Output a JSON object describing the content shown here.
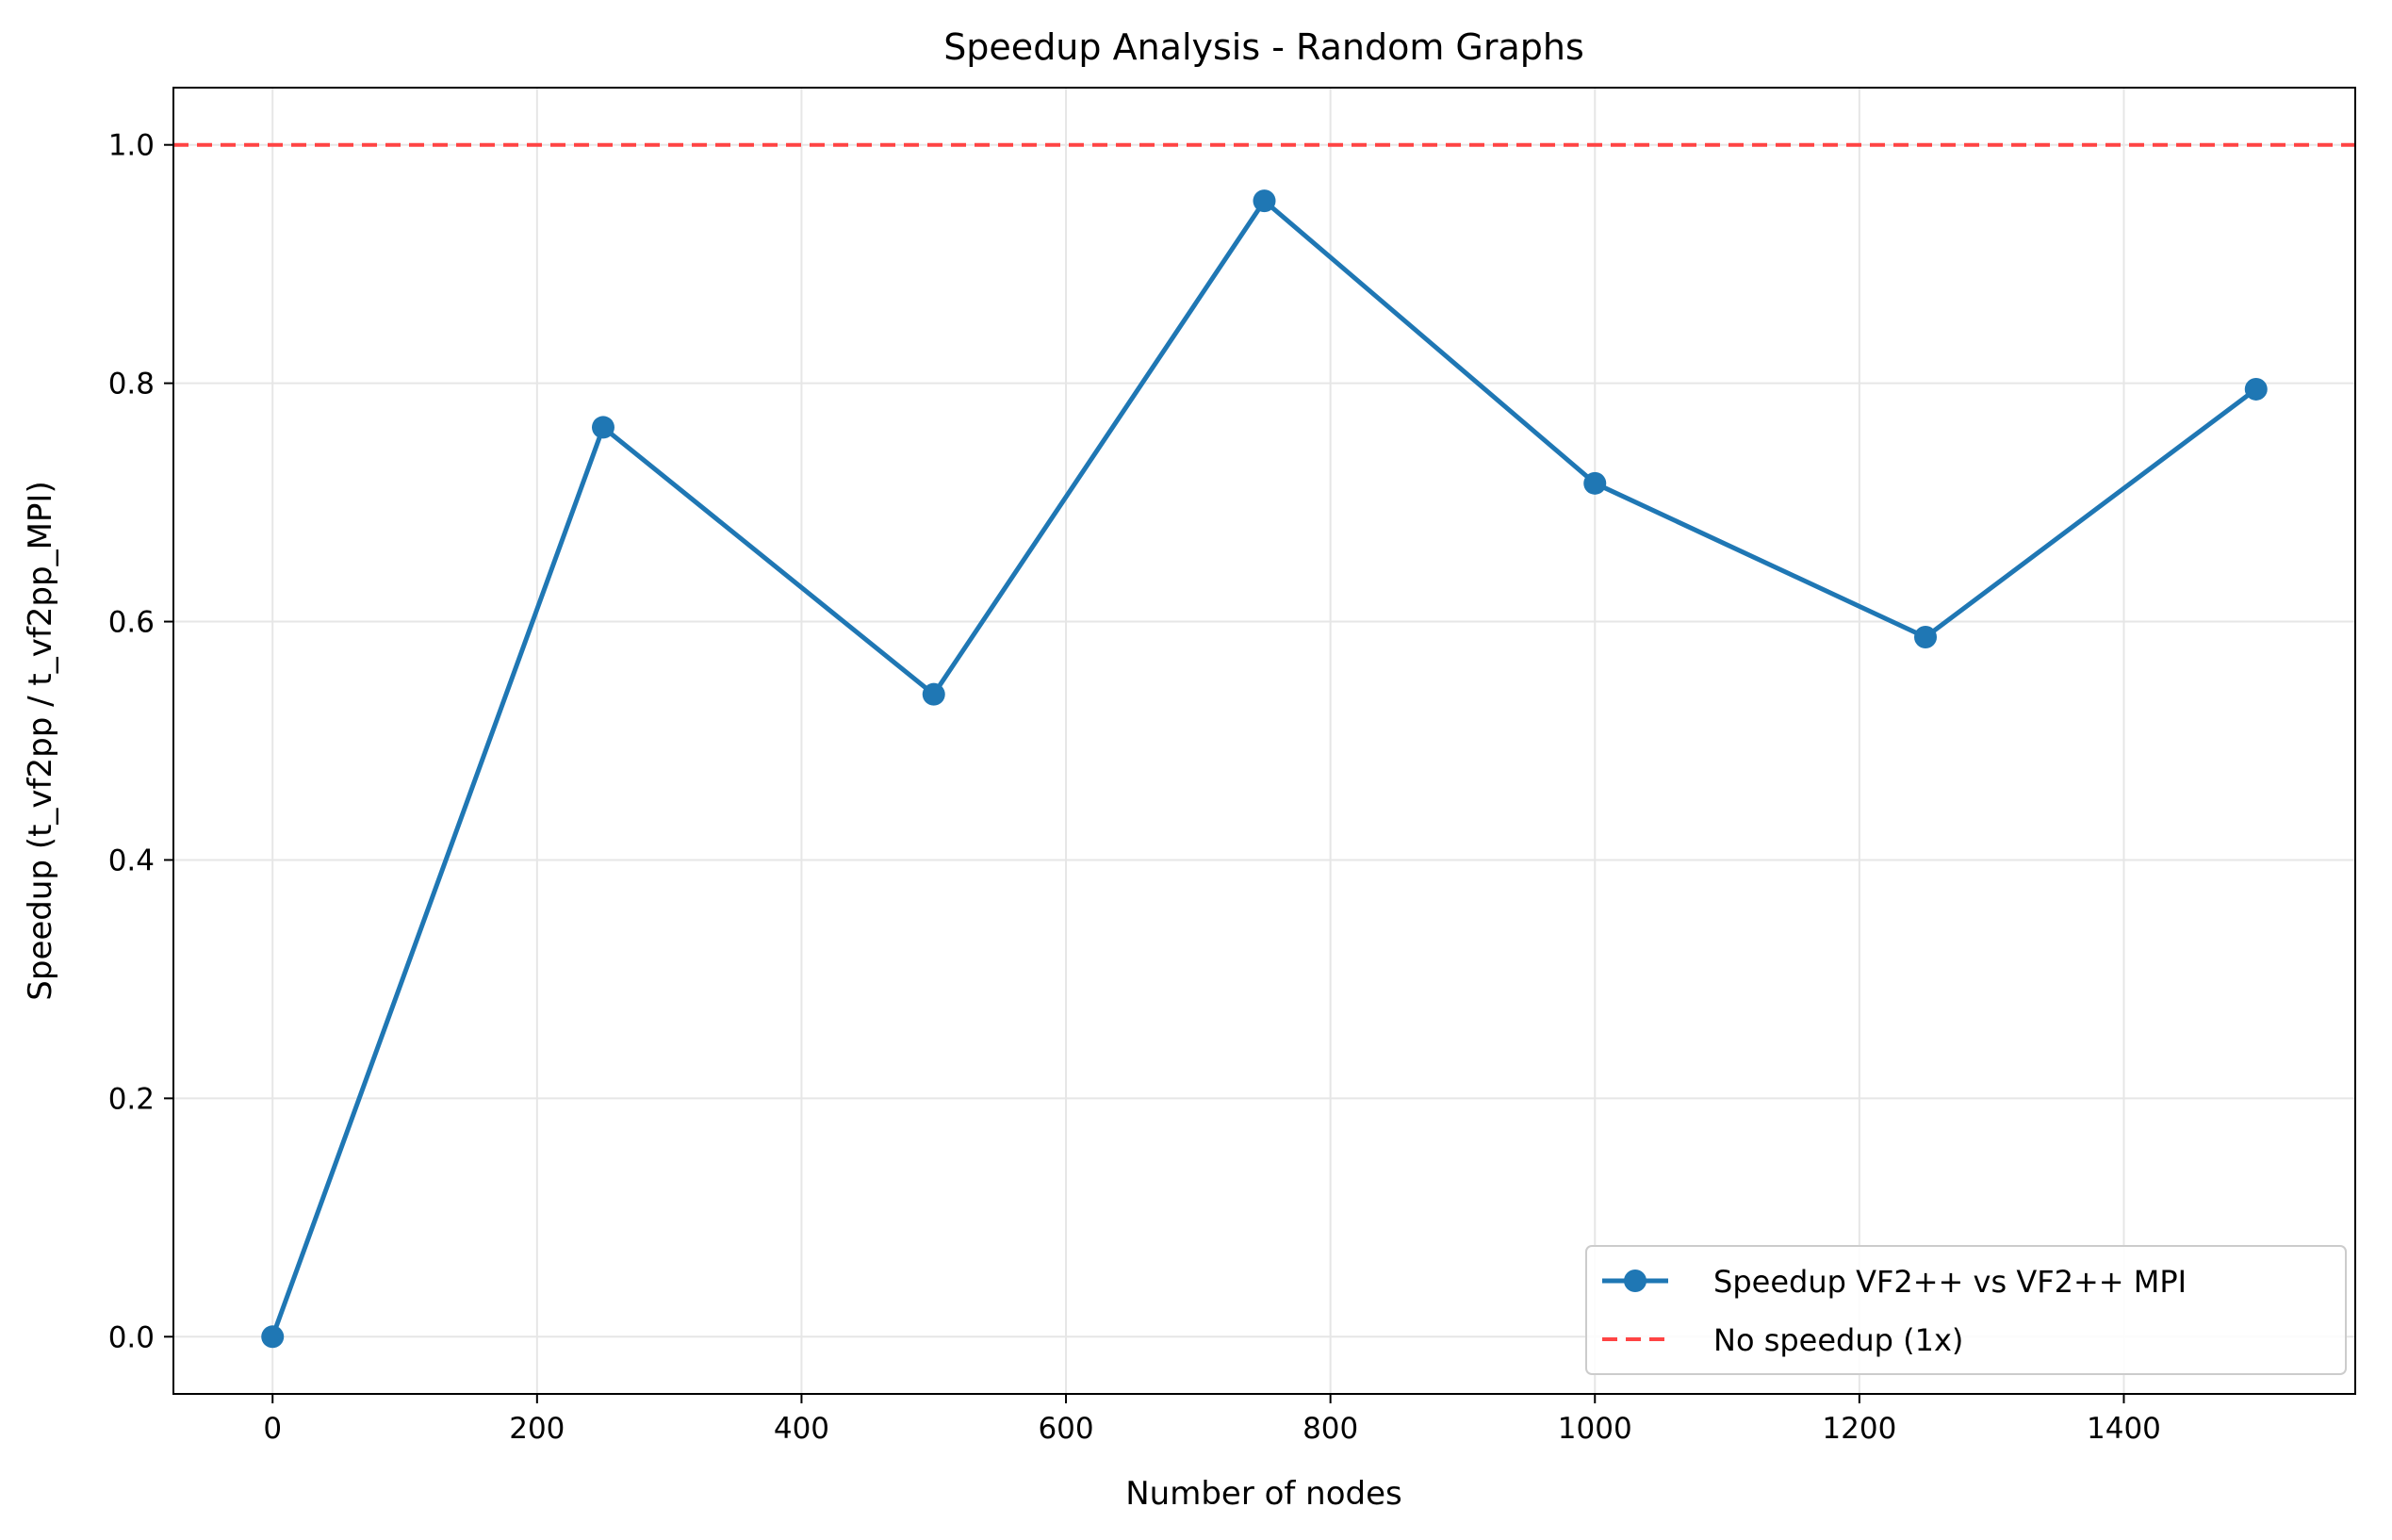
{
  "chart_data": {
    "type": "line",
    "title": "Speedup Analysis - Random Graphs",
    "xlabel": "Number of nodes",
    "ylabel": "Speedup (t_vf2pp / t_vf2pp_MPI)",
    "xlim": [
      -75,
      1575
    ],
    "ylim": [
      -0.048,
      1.048
    ],
    "xticks": [
      0,
      200,
      400,
      600,
      800,
      1000,
      1200,
      1400
    ],
    "yticks": [
      0.0,
      0.2,
      0.4,
      0.6,
      0.8,
      1.0
    ],
    "grid": true,
    "legend_position": "lower-right",
    "series": [
      {
        "name": "Speedup VF2++ vs VF2++ MPI",
        "color": "#1f77b4",
        "style": "solid-with-markers",
        "x": [
          0,
          250,
          500,
          750,
          1000,
          1250,
          1500
        ],
        "y": [
          0.0,
          0.763,
          0.539,
          0.953,
          0.716,
          0.587,
          0.795
        ]
      }
    ],
    "reference_lines": [
      {
        "name": "No speedup (1x)",
        "color": "#ff4444",
        "style": "dashed",
        "y": 1.0
      }
    ]
  }
}
